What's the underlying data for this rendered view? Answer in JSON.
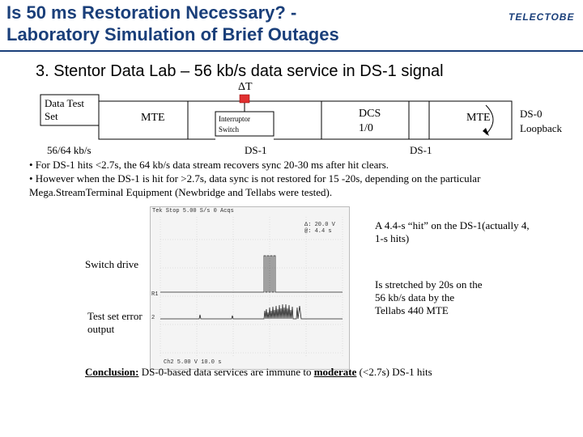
{
  "title": {
    "line1": "Is 50 ms Restoration Necessary? -",
    "line2": "Laboratory Simulation of Brief Outages"
  },
  "logo": "TELECTOBE",
  "subtitle": "3. Stentor Data Lab – 56 kb/s data service in DS-1 signal",
  "diagram": {
    "delta_t": "ΔT",
    "data_test_set": "Data Test Set",
    "mte_left": "MTE",
    "interruptor_switch": "Interruptor Switch",
    "dcs": "DCS 1/0",
    "mte_right": "MTE",
    "ds0_loopback": "DS-0 Loopback",
    "label_5664": "56/64 kb/s",
    "label_ds1_left": "DS-1",
    "label_ds1_right": "DS-1"
  },
  "bullets": [
    "• For DS-1 hits <2.7s, the 64 kb/s data stream recovers sync 20-30 ms after hit clears.",
    "• However when the DS-1 is hit for >2.7s, data sync is not restored for 15 -20s, depending on the particular Mega.StreamTerminal Equipment (Newbridge and Tellabs were tested)."
  ],
  "scope": {
    "top_bar": "Tek  Stop  5.00 S/s        0 Acqs",
    "readout1": "Δ: 20.0 V",
    "readout2": "@: 4.4 s",
    "bottom_bar": "Ch2    5.00 V    10.0 s",
    "ch_marker1": "R1",
    "ch_marker2": "2"
  },
  "annotations": {
    "hit": "A 4.4-s “hit” on the DS-1(actually 4, 1-s hits)",
    "switch_drive": "Switch drive",
    "test_set": "Test set error output",
    "stretched": "Is stretched by 20s on the 56 kb/s data by the Tellabs 440 MTE"
  },
  "conclusion": {
    "label": "Conclusion:",
    "pre": " DS-0-based data services are immune to ",
    "emph": "moderate",
    "post": "  (<2.7s) DS-1 hits"
  }
}
